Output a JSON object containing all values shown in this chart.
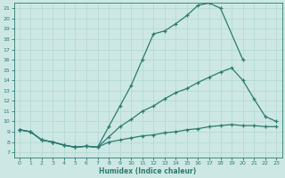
{
  "xlabel": "Humidex (Indice chaleur)",
  "background_color": "#cde8e4",
  "line_color": "#2d7a70",
  "grid_color": "#b0d8d0",
  "xlim": [
    -0.5,
    23.5
  ],
  "ylim": [
    6.5,
    21.5
  ],
  "yticks": [
    7,
    8,
    9,
    10,
    11,
    12,
    13,
    14,
    15,
    16,
    17,
    18,
    19,
    20,
    21
  ],
  "xticks": [
    0,
    1,
    2,
    3,
    4,
    5,
    6,
    7,
    8,
    9,
    10,
    11,
    12,
    13,
    14,
    15,
    16,
    17,
    18,
    19,
    20,
    21,
    22,
    23
  ],
  "line1_x": [
    0,
    1,
    2,
    3,
    4,
    5,
    6,
    7,
    8,
    9,
    10,
    11,
    12,
    13,
    14,
    15,
    16,
    17,
    18,
    20
  ],
  "line1_y": [
    9.2,
    9.0,
    8.2,
    8.0,
    7.7,
    7.5,
    7.6,
    7.5,
    9.5,
    11.5,
    13.5,
    16.0,
    18.5,
    18.8,
    19.5,
    20.3,
    21.3,
    21.5,
    21.0,
    16.0
  ],
  "line2_x": [
    0,
    1,
    2,
    3,
    4,
    5,
    6,
    7,
    8,
    9,
    10,
    11,
    12,
    13,
    14,
    15,
    16,
    17,
    18,
    19,
    20,
    21,
    22,
    23
  ],
  "line2_y": [
    9.2,
    9.0,
    8.2,
    8.0,
    7.7,
    7.5,
    7.6,
    7.5,
    8.5,
    9.5,
    10.2,
    11.0,
    11.5,
    12.2,
    12.8,
    13.2,
    13.8,
    14.3,
    14.8,
    15.2,
    14.0,
    12.2,
    10.5,
    10.0
  ],
  "line3_x": [
    0,
    1,
    2,
    3,
    4,
    5,
    6,
    7,
    8,
    9,
    10,
    11,
    12,
    13,
    14,
    15,
    16,
    17,
    18,
    19,
    20,
    21,
    22,
    23
  ],
  "line3_y": [
    9.2,
    9.0,
    8.2,
    8.0,
    7.7,
    7.5,
    7.6,
    7.5,
    8.0,
    8.2,
    8.4,
    8.6,
    8.7,
    8.9,
    9.0,
    9.2,
    9.3,
    9.5,
    9.6,
    9.7,
    9.6,
    9.6,
    9.5,
    9.5
  ]
}
